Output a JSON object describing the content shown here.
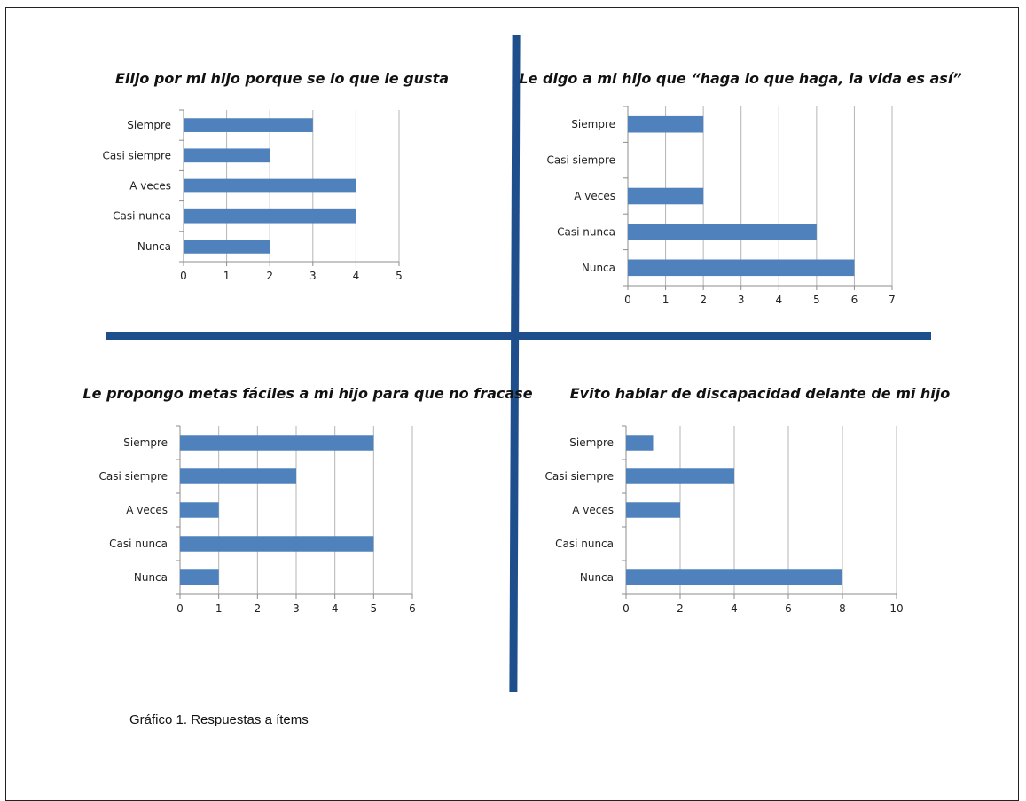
{
  "caption": "Gráfico 1. Respuestas a ítems",
  "colors": {
    "bar": "#4f81bd",
    "divider": "#1f4e8c",
    "grid": "#b5b5b5",
    "axis": "#8c8c8c"
  },
  "chart_data": [
    {
      "type": "bar",
      "orientation": "horizontal",
      "title": "Elijo por mi hijo porque se lo que le gusta",
      "categories": [
        "Siempre",
        "Casi siempre",
        "A veces",
        "Casi nunca",
        "Nunca"
      ],
      "values": [
        3,
        2,
        4,
        4,
        2
      ],
      "xlim": [
        0,
        5
      ],
      "xticks": [
        0,
        1,
        2,
        3,
        4,
        5
      ],
      "grid": true
    },
    {
      "type": "bar",
      "orientation": "horizontal",
      "title": "Le digo a mi hijo que “haga lo que haga, la vida es así”",
      "categories": [
        "Siempre",
        "Casi siempre",
        "A veces",
        "Casi nunca",
        "Nunca"
      ],
      "values": [
        2,
        0,
        2,
        5,
        6
      ],
      "xlim": [
        0,
        7
      ],
      "xticks": [
        0,
        1,
        2,
        3,
        4,
        5,
        6,
        7
      ],
      "grid": true
    },
    {
      "type": "bar",
      "orientation": "horizontal",
      "title": "Le propongo metas fáciles a mi hijo para que no fracase",
      "categories": [
        "Siempre",
        "Casi siempre",
        "A veces",
        "Casi nunca",
        "Nunca"
      ],
      "values": [
        5,
        3,
        1,
        5,
        1
      ],
      "xlim": [
        0,
        6
      ],
      "xticks": [
        0,
        1,
        2,
        3,
        4,
        5,
        6
      ],
      "grid": true
    },
    {
      "type": "bar",
      "orientation": "horizontal",
      "title": "Evito hablar de discapacidad delante de mi hijo",
      "categories": [
        "Siempre",
        "Casi siempre",
        "A veces",
        "Casi nunca",
        "Nunca"
      ],
      "values": [
        1,
        4,
        2,
        0,
        8
      ],
      "xlim": [
        0,
        10
      ],
      "xticks": [
        0,
        2,
        4,
        6,
        8,
        10
      ],
      "grid": true
    }
  ]
}
